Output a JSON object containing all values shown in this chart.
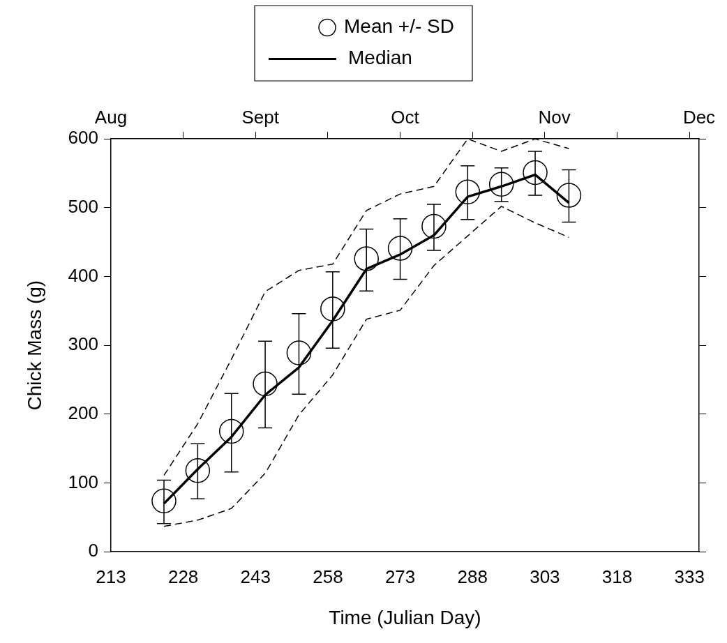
{
  "chart_data": {
    "type": "line",
    "xlabel": "Time (Julian Day)",
    "ylabel": "Chick Mass (g)",
    "x": [
      224,
      231,
      238,
      245,
      252,
      259,
      266,
      273,
      280,
      287,
      294,
      301,
      308
    ],
    "series": [
      {
        "name": "Mean +/- SD",
        "type": "scatter",
        "color": "#000000",
        "marker": "circle",
        "values": [
          74,
          118,
          175,
          244,
          289,
          353,
          426,
          441,
          473,
          523,
          534,
          551,
          518
        ],
        "errors": [
          [
            41,
            104
          ],
          [
            77,
            157
          ],
          [
            116,
            230
          ],
          [
            180,
            306
          ],
          [
            229,
            346
          ],
          [
            296,
            407
          ],
          [
            379,
            469
          ],
          [
            396,
            484
          ],
          [
            438,
            505
          ],
          [
            483,
            561
          ],
          [
            509,
            558
          ],
          [
            518,
            582
          ],
          [
            479,
            555
          ]
        ]
      },
      {
        "name": "Median",
        "type": "line",
        "color": "#000000",
        "marker": "none",
        "line_style": "solid",
        "values": [
          70,
          120,
          167,
          228,
          268,
          336,
          411,
          432,
          460,
          516,
          531,
          548,
          507
        ]
      },
      {
        "type": "line",
        "color": "#000000",
        "marker": "none",
        "line_style": "dashed",
        "values": [
          111,
          186,
          280,
          378,
          409,
          418,
          496,
          520,
          531,
          600,
          582,
          600,
          586
        ]
      },
      {
        "type": "line",
        "color": "#000000",
        "marker": "none",
        "line_style": "dashed",
        "values": [
          37,
          46,
          63,
          114,
          199,
          257,
          338,
          351,
          416,
          459,
          502,
          478,
          457
        ]
      }
    ],
    "xlim": [
      213,
      335
    ],
    "xticks": [
      213,
      228,
      243,
      258,
      273,
      288,
      303,
      318,
      333
    ],
    "ylim": [
      0,
      600
    ],
    "yticks": [
      0,
      100,
      200,
      300,
      400,
      500,
      600
    ],
    "x2lim": [
      "--08-01",
      "--12-01"
    ],
    "x2ticks": [
      {
        "value": "--08-01",
        "label": "Aug"
      },
      {
        "value": "--08-16",
        "label": null
      },
      {
        "value": "--08-31",
        "label": null
      },
      {
        "value": "--09-01",
        "label": "Sept"
      },
      {
        "value": "--09-15",
        "label": null
      },
      {
        "value": "--09-30",
        "label": null
      },
      {
        "value": "--10-01",
        "label": "Oct"
      },
      {
        "value": "--10-15",
        "label": null
      },
      {
        "value": "--10-30",
        "label": null
      },
      {
        "value": "--11-01",
        "label": "Nov"
      },
      {
        "value": "--11-14",
        "label": null
      },
      {
        "value": "--11-29",
        "label": null
      },
      {
        "value": "--12-01",
        "label": "Dec"
      }
    ],
    "grid": false,
    "legend": "top"
  }
}
